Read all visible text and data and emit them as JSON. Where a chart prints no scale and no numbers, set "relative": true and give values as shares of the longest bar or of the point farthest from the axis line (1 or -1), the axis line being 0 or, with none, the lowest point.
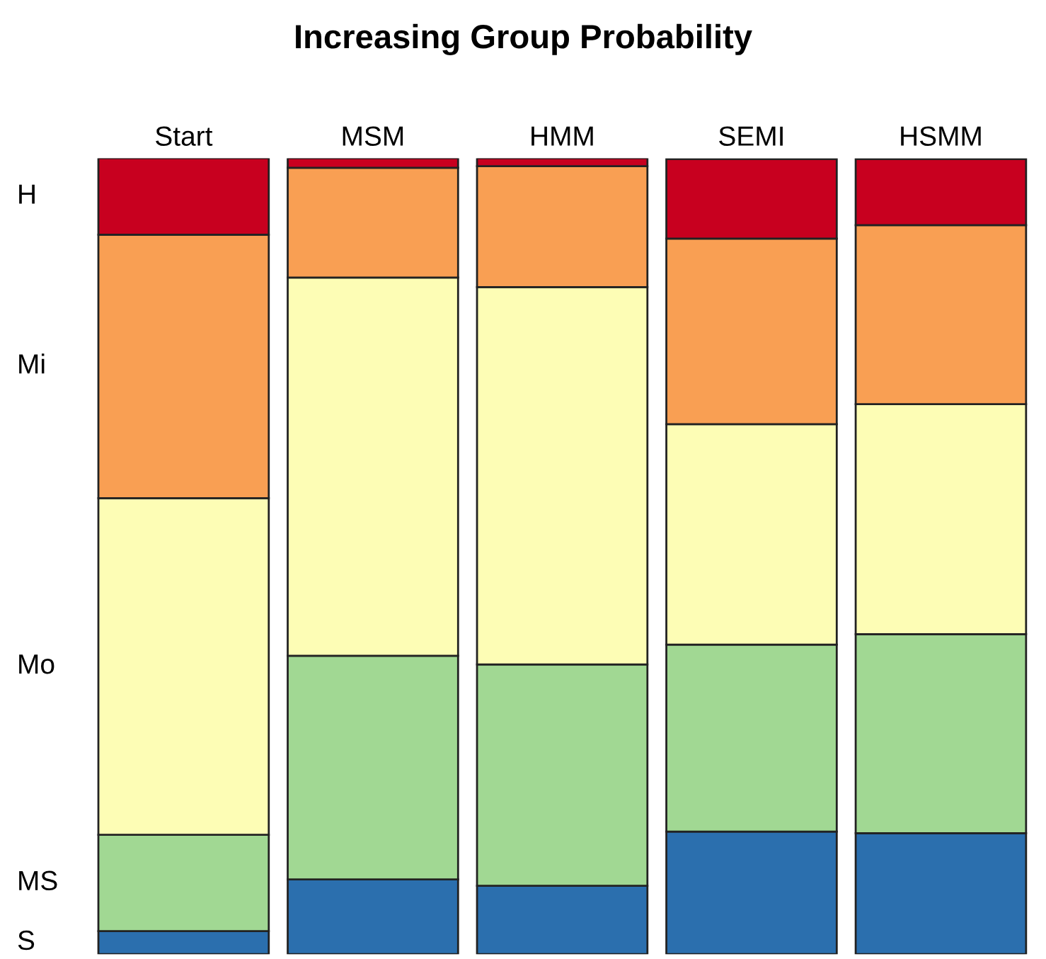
{
  "chart_data": {
    "type": "bar",
    "title": "Increasing Group Probability",
    "categories": [
      "Start",
      "MSM",
      "HMM",
      "SEMI",
      "HSMM"
    ],
    "stacked": true,
    "relative": true,
    "legend": false,
    "grid": false,
    "series": [
      {
        "name": "S",
        "color": "#2b6fae",
        "values": [
          0.029,
          0.094,
          0.086,
          0.154,
          0.152
        ]
      },
      {
        "name": "MS",
        "color": "#a1d893",
        "values": [
          0.121,
          0.281,
          0.278,
          0.235,
          0.25
        ]
      },
      {
        "name": "Mo",
        "color": "#fdfdb5",
        "values": [
          0.423,
          0.475,
          0.474,
          0.277,
          0.289
        ]
      },
      {
        "name": "Mi",
        "color": "#f99f53",
        "values": [
          0.331,
          0.138,
          0.152,
          0.233,
          0.225
        ]
      },
      {
        "name": "H",
        "color": "#c8001f",
        "values": [
          0.096,
          0.012,
          0.01,
          0.1,
          0.083
        ]
      }
    ]
  }
}
